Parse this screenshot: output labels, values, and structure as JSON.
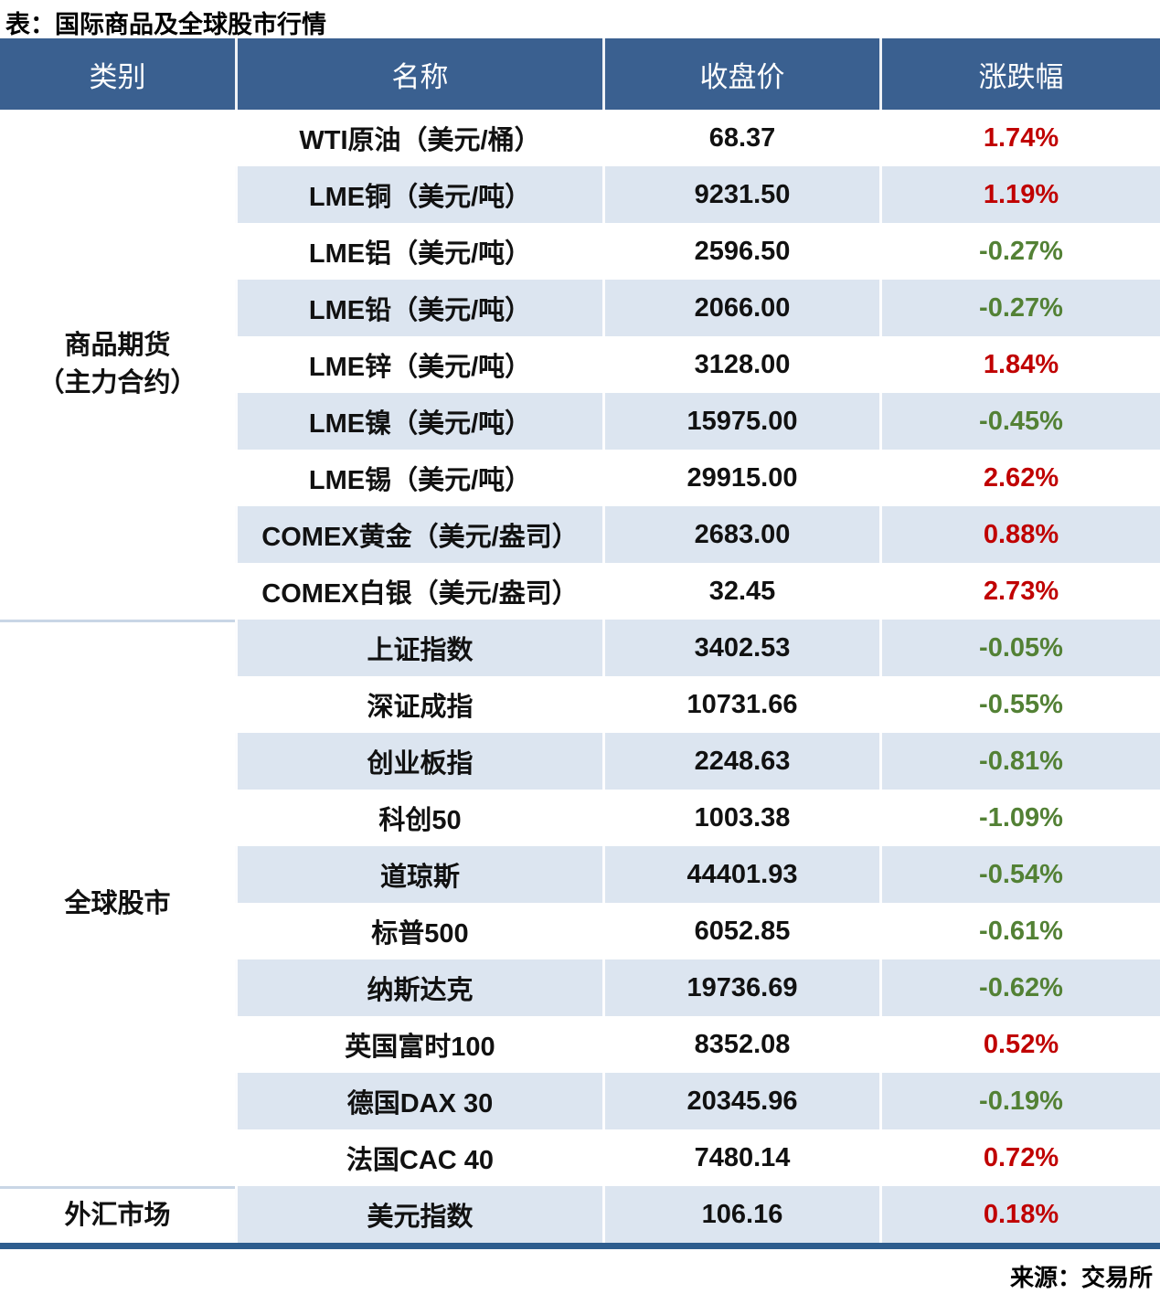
{
  "title": "表：国际商品及全球股市行情",
  "footer": {
    "source": "来源：交易所"
  },
  "colors": {
    "header_bg": "#3A6090",
    "stripe_bg": "#DCE5F0",
    "up_red": "#C00000",
    "down_green": "#538135",
    "bottom_bar": "#2E5D8E",
    "section_divider": "#C9D6E6"
  },
  "table": {
    "columns": [
      {
        "label": "类别"
      },
      {
        "label": "名称"
      },
      {
        "label": "收盘价"
      },
      {
        "label": "涨跌幅"
      }
    ],
    "sections": [
      {
        "category_lines": [
          "商品期货",
          "（主力合约）"
        ],
        "rows": [
          {
            "name": "WTI原油（美元/桶）",
            "close": "68.37",
            "change": "1.74%",
            "direction": "up"
          },
          {
            "name": "LME铜（美元/吨）",
            "close": "9231.50",
            "change": "1.19%",
            "direction": "up"
          },
          {
            "name": "LME铝（美元/吨）",
            "close": "2596.50",
            "change": "-0.27%",
            "direction": "down"
          },
          {
            "name": "LME铅（美元/吨）",
            "close": "2066.00",
            "change": "-0.27%",
            "direction": "down"
          },
          {
            "name": "LME锌（美元/吨）",
            "close": "3128.00",
            "change": "1.84%",
            "direction": "up"
          },
          {
            "name": "LME镍（美元/吨）",
            "close": "15975.00",
            "change": "-0.45%",
            "direction": "down"
          },
          {
            "name": "LME锡（美元/吨）",
            "close": "29915.00",
            "change": "2.62%",
            "direction": "up"
          },
          {
            "name": "COMEX黄金（美元/盎司）",
            "close": "2683.00",
            "change": "0.88%",
            "direction": "up"
          },
          {
            "name": "COMEX白银（美元/盎司）",
            "close": "32.45",
            "change": "2.73%",
            "direction": "up"
          }
        ]
      },
      {
        "category_lines": [
          "全球股市"
        ],
        "rows": [
          {
            "name": "上证指数",
            "close": "3402.53",
            "change": "-0.05%",
            "direction": "down"
          },
          {
            "name": "深证成指",
            "close": "10731.66",
            "change": "-0.55%",
            "direction": "down"
          },
          {
            "name": "创业板指",
            "close": "2248.63",
            "change": "-0.81%",
            "direction": "down"
          },
          {
            "name": "科创50",
            "close": "1003.38",
            "change": "-1.09%",
            "direction": "down"
          },
          {
            "name": "道琼斯",
            "close": "44401.93",
            "change": "-0.54%",
            "direction": "down"
          },
          {
            "name": "标普500",
            "close": "6052.85",
            "change": "-0.61%",
            "direction": "down"
          },
          {
            "name": "纳斯达克",
            "close": "19736.69",
            "change": "-0.62%",
            "direction": "down"
          },
          {
            "name": "英国富时100",
            "close": "8352.08",
            "change": "0.52%",
            "direction": "up"
          },
          {
            "name": "德国DAX 30",
            "close": "20345.96",
            "change": "-0.19%",
            "direction": "down"
          },
          {
            "name": "法国CAC 40",
            "close": "7480.14",
            "change": "0.72%",
            "direction": "up"
          }
        ]
      },
      {
        "category_lines": [
          "外汇市场"
        ],
        "rows": [
          {
            "name": "美元指数",
            "close": "106.16",
            "change": "0.18%",
            "direction": "up"
          }
        ]
      }
    ]
  }
}
